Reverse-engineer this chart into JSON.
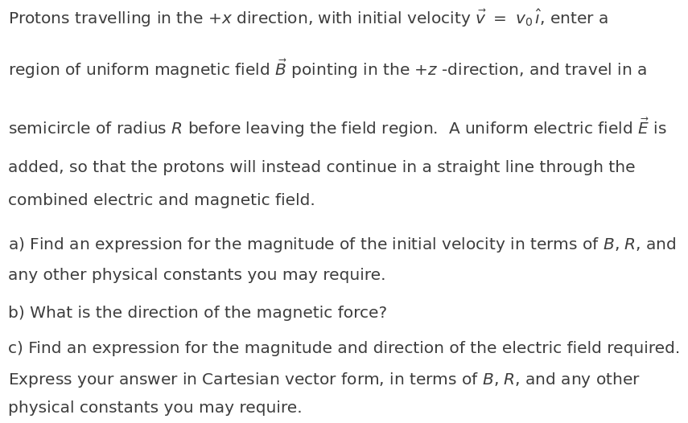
{
  "background_color": "#ffffff",
  "text_color": "#3d3d3d",
  "fig_width": 9.24,
  "fig_height": 4.83,
  "font_size": 14.5,
  "line_positions": [
    0.895,
    0.775,
    0.635,
    0.535,
    0.455,
    0.345,
    0.265,
    0.17,
    0.078,
    0.0,
    -0.075
  ],
  "texts": [
    "Protons travelling in the +$x$ direction, with initial velocity $\\vec{v}$ $=$ $v_0\\,\\hat{\\imath}$, enter a",
    "region of uniform magnetic field $\\vec{B}$ pointing in the +$z$ -direction, and travel in a",
    "semicircle of radius $R$ before leaving the field region.  A uniform electric field $\\vec{E}$ is",
    "added, so that the protons will instead continue in a straight line through the",
    "combined electric and magnetic field.",
    "a) Find an expression for the magnitude of the initial velocity in terms of $B$, $R$, and",
    "any other physical constants you may require.",
    "b) What is the direction of the magnetic force?",
    "c) Find an expression for the magnitude and direction of the electric field required.",
    "Express your answer in Cartesian vector form, in terms of $B$, $R$, and any other",
    "physical constants you may require."
  ]
}
